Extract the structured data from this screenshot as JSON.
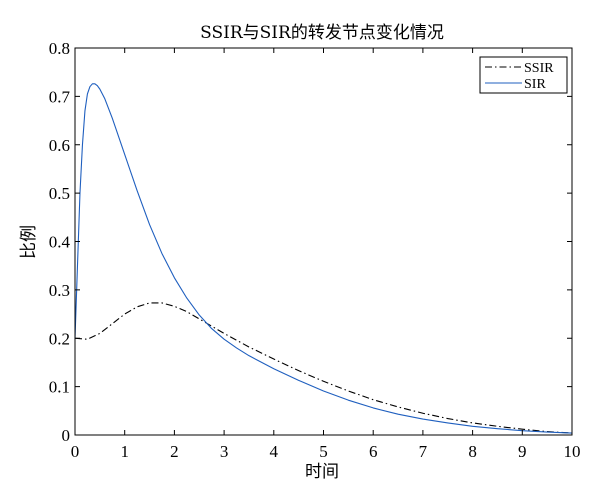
{
  "chart_data": {
    "type": "line",
    "title": "SSIR与SIR的转发节点变化情况",
    "xlabel": "时间",
    "ylabel": "比例",
    "xlim": [
      0,
      10
    ],
    "ylim": [
      0,
      0.8
    ],
    "xticks": [
      "0",
      "1",
      "2",
      "3",
      "4",
      "5",
      "6",
      "7",
      "8",
      "9",
      "10"
    ],
    "yticks": [
      "0",
      "0.1",
      "0.2",
      "0.3",
      "0.4",
      "0.5",
      "0.6",
      "0.7",
      "0.8"
    ],
    "grid": false,
    "legend_position": "top-right",
    "series": [
      {
        "name": "SSIR",
        "color": "#000000",
        "line_style": "dash-dot",
        "x": [
          0,
          0.25,
          0.5,
          0.75,
          1.0,
          1.25,
          1.5,
          1.75,
          2.0,
          2.25,
          2.5,
          2.75,
          3.0,
          3.25,
          3.5,
          4.0,
          4.5,
          5.0,
          5.5,
          6.0,
          6.5,
          7.0,
          7.5,
          8.0,
          8.5,
          9.0,
          9.5,
          10.0
        ],
        "y": [
          0.2,
          0.198,
          0.21,
          0.23,
          0.25,
          0.265,
          0.273,
          0.273,
          0.266,
          0.255,
          0.24,
          0.225,
          0.21,
          0.196,
          0.182,
          0.157,
          0.133,
          0.111,
          0.091,
          0.073,
          0.058,
          0.045,
          0.034,
          0.025,
          0.018,
          0.012,
          0.007,
          0.004
        ]
      },
      {
        "name": "SIR",
        "color": "#1f5fbf",
        "line_style": "solid",
        "x": [
          0,
          0.05,
          0.1,
          0.15,
          0.2,
          0.25,
          0.3,
          0.35,
          0.4,
          0.45,
          0.5,
          0.6,
          0.75,
          1.0,
          1.25,
          1.5,
          1.75,
          2.0,
          2.25,
          2.5,
          2.75,
          3.0,
          3.25,
          3.5,
          4.0,
          4.5,
          5.0,
          5.5,
          6.0,
          6.5,
          7.0,
          7.5,
          8.0,
          8.5,
          9.0,
          9.5,
          10.0
        ],
        "y": [
          0.2,
          0.35,
          0.5,
          0.6,
          0.67,
          0.705,
          0.72,
          0.726,
          0.726,
          0.722,
          0.715,
          0.695,
          0.655,
          0.58,
          0.505,
          0.435,
          0.375,
          0.325,
          0.283,
          0.248,
          0.22,
          0.198,
          0.18,
          0.164,
          0.137,
          0.113,
          0.091,
          0.072,
          0.056,
          0.043,
          0.033,
          0.025,
          0.018,
          0.013,
          0.009,
          0.006,
          0.004
        ]
      }
    ]
  }
}
